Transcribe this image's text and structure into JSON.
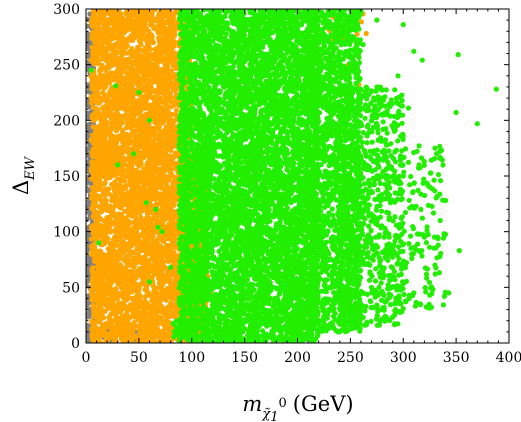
{
  "chart_data": {
    "type": "scatter",
    "title": "",
    "xlabel": {
      "main": "m",
      "subscript": "χ̃",
      "subsub": "1",
      "superscript": "0",
      "unit": "(GeV)"
    },
    "ylabel": {
      "main": "Δ",
      "subscript": "EW"
    },
    "xlim": [
      0,
      400
    ],
    "ylim": [
      0,
      300
    ],
    "xticks": [
      0,
      50,
      100,
      150,
      200,
      250,
      300,
      350,
      400
    ],
    "yticks": [
      0,
      50,
      100,
      150,
      200,
      250,
      300
    ],
    "grid": false,
    "legend": "none",
    "series": [
      {
        "color": "#808080",
        "regions": [
          {
            "x": [
              0,
              8
            ],
            "y": [
              0,
              300
            ],
            "density": 0.9
          },
          {
            "x": [
              8,
              25
            ],
            "y": [
              0,
              12
            ],
            "density": 0.5
          },
          {
            "x": [
              35,
              65
            ],
            "y": [
              0,
              15
            ],
            "density": 0.5
          }
        ],
        "points": [
          {
            "x": 2,
            "y": 230
          },
          {
            "x": 4,
            "y": 178
          },
          {
            "x": 6,
            "y": 130
          },
          {
            "x": 3,
            "y": 90
          },
          {
            "x": 55,
            "y": 12
          },
          {
            "x": 48,
            "y": 6
          },
          {
            "x": 20,
            "y": 8
          }
        ]
      },
      {
        "color": "#ffa500",
        "regions": [
          {
            "x": [
              5,
              85
            ],
            "y": [
              0,
              300
            ],
            "density": 1.0
          },
          {
            "x": [
              85,
              115
            ],
            "y": [
              0,
              170
            ],
            "density": 0.95
          },
          {
            "x": [
              85,
              100
            ],
            "y": [
              170,
              300
            ],
            "density": 0.6
          },
          {
            "x": [
              230,
              265
            ],
            "y": [
              270,
              300
            ],
            "density": 0.15
          }
        ],
        "points": [
          {
            "x": 118,
            "y": 45
          },
          {
            "x": 122,
            "y": 38
          },
          {
            "x": 115,
            "y": 60
          },
          {
            "x": 240,
            "y": 285
          },
          {
            "x": 252,
            "y": 290
          },
          {
            "x": 248,
            "y": 250
          },
          {
            "x": 265,
            "y": 278
          },
          {
            "x": 120,
            "y": 120
          },
          {
            "x": 258,
            "y": 232
          },
          {
            "x": 110,
            "y": 290
          }
        ]
      },
      {
        "color": "#22ee00",
        "regions": [
          {
            "x": [
              88,
              220
            ],
            "y": [
              0,
              300
            ],
            "density": 1.0
          },
          {
            "x": [
              82,
              95
            ],
            "y": [
              5,
              20
            ],
            "density": 0.8
          },
          {
            "x": [
              210,
              260
            ],
            "y": [
              10,
              300
            ],
            "density": 0.7
          },
          {
            "x": [
              240,
              300
            ],
            "y": [
              15,
              230
            ],
            "density": 0.35
          },
          {
            "x": [
              280,
              340
            ],
            "y": [
              30,
              180
            ],
            "density": 0.12
          }
        ],
        "points": [
          {
            "x": 388,
            "y": 228
          },
          {
            "x": 370,
            "y": 197
          },
          {
            "x": 350,
            "y": 207
          },
          {
            "x": 353,
            "y": 83
          },
          {
            "x": 352,
            "y": 259
          },
          {
            "x": 340,
            "y": 128
          },
          {
            "x": 343,
            "y": 45
          },
          {
            "x": 330,
            "y": 175
          },
          {
            "x": 320,
            "y": 95
          },
          {
            "x": 318,
            "y": 254
          },
          {
            "x": 310,
            "y": 262
          },
          {
            "x": 305,
            "y": 211
          },
          {
            "x": 300,
            "y": 150
          },
          {
            "x": 298,
            "y": 112
          },
          {
            "x": 295,
            "y": 240
          },
          {
            "x": 290,
            "y": 58
          },
          {
            "x": 285,
            "y": 178
          },
          {
            "x": 330,
            "y": 70
          },
          {
            "x": 315,
            "y": 160
          },
          {
            "x": 308,
            "y": 80
          },
          {
            "x": 28,
            "y": 231
          },
          {
            "x": 5,
            "y": 245
          },
          {
            "x": 45,
            "y": 170
          },
          {
            "x": 60,
            "y": 200
          },
          {
            "x": 50,
            "y": 225
          },
          {
            "x": 57,
            "y": 126
          },
          {
            "x": 66,
            "y": 120
          },
          {
            "x": 68,
            "y": 104
          },
          {
            "x": 72,
            "y": 100
          },
          {
            "x": 80,
            "y": 68
          },
          {
            "x": 60,
            "y": 55
          },
          {
            "x": 30,
            "y": 160
          },
          {
            "x": 12,
            "y": 90
          },
          {
            "x": 100,
            "y": 290
          },
          {
            "x": 260,
            "y": 297
          },
          {
            "x": 275,
            "y": 290
          },
          {
            "x": 300,
            "y": 286
          },
          {
            "x": 230,
            "y": 300
          },
          {
            "x": 310,
            "y": 45
          },
          {
            "x": 280,
            "y": 30
          },
          {
            "x": 270,
            "y": 50
          },
          {
            "x": 325,
            "y": 140
          },
          {
            "x": 335,
            "y": 110
          },
          {
            "x": 262,
            "y": 268
          }
        ]
      }
    ]
  }
}
